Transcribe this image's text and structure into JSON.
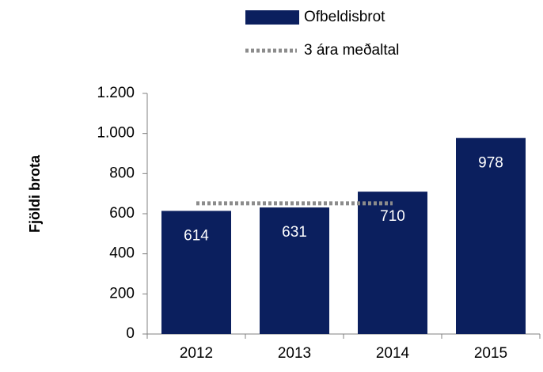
{
  "chart_data": {
    "type": "bar",
    "y_axis_label": "Fjöldi brota",
    "categories": [
      "2012",
      "2013",
      "2014",
      "2015"
    ],
    "series": [
      {
        "name": "Ofbeldisbrot",
        "type": "bar",
        "color": "#0b1f5e",
        "values": [
          614,
          631,
          710,
          978
        ]
      },
      {
        "name": "3 ára meðaltal",
        "type": "line",
        "color": "#8c8c8c",
        "values": [
          652,
          652,
          652,
          null
        ]
      }
    ],
    "ylim": [
      0,
      1200
    ],
    "yticks": [
      0,
      200,
      400,
      600,
      800,
      {
        "value": 1000,
        "label": "1.000"
      },
      {
        "value": 1200,
        "label": "1.200"
      }
    ],
    "legend": "top"
  }
}
